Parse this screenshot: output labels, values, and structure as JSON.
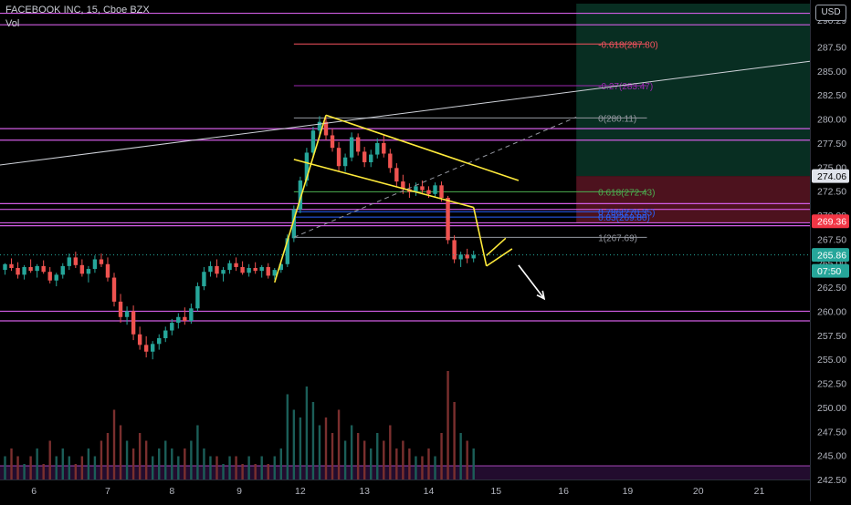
{
  "header": {
    "title": "FACEBOOK INC, 15, Cboe BZX",
    "volume_label": "Vol",
    "currency": "USD"
  },
  "colors": {
    "background": "#000000",
    "up": "#26a69a",
    "down": "#ef5350",
    "vol_up": "#1b5e58",
    "vol_down": "#7a2f2e",
    "level_line": "#d05ce3",
    "pattern": "#ffeb3b",
    "fib_line": "#9598a1",
    "profit_zone": "#0b3d2e",
    "loss_zone": "#5a1523",
    "axis_text": "#b2b5be"
  },
  "chart_data": {
    "type": "candlestick",
    "title": "FACEBOOK INC, 15, Cboe BZX",
    "ylim": [
      242.5,
      292.0
    ],
    "price_axis_ticks": [
      "290.29",
      "287.50",
      "285.00",
      "282.50",
      "280.00",
      "277.50",
      "275.00",
      "272.50",
      "270.00",
      "267.50",
      "265.00",
      "262.50",
      "260.00",
      "257.50",
      "255.00",
      "252.50",
      "250.00",
      "247.50",
      "245.00",
      "242.50"
    ],
    "x_tick_labels": [
      "6",
      "7",
      "8",
      "9",
      "12",
      "13",
      "14",
      "15",
      "16",
      "19",
      "20",
      "21"
    ],
    "price_labels": [
      {
        "text": "274.06",
        "value": 274.06,
        "color": "#e0e3eb",
        "text_color": "#000000"
      },
      {
        "text": "269.36",
        "value": 269.36,
        "color": "#f23645",
        "text_color": "#ffffff"
      },
      {
        "text": "265.86",
        "value": 265.86,
        "color": "#26a69a",
        "text_color": "#ffffff"
      },
      {
        "text": "07:50",
        "value": 264.2,
        "color": "#26a69a",
        "text_color": "#ffffff"
      }
    ],
    "fib_levels": [
      {
        "label": "-0.618(287.80)",
        "value": 287.8,
        "color": "#f7525f"
      },
      {
        "label": "-0.27(283.47)",
        "value": 283.47,
        "color": "#9c27b0"
      },
      {
        "label": "0(280.11)",
        "value": 280.11,
        "color": "#9598a1"
      },
      {
        "label": "0.618(272.43)",
        "value": 272.43,
        "color": "#4caf50"
      },
      {
        "label": "0.786(270.35)",
        "value": 270.35,
        "color": "#2962ff"
      },
      {
        "label": "0.83(269.80)",
        "value": 269.8,
        "color": "#2962ff"
      },
      {
        "label": "1(267.69)",
        "value": 267.69,
        "color": "#9598a1"
      }
    ],
    "horizontal_levels": [
      291.0,
      289.8,
      279.0,
      277.8,
      271.2,
      270.6,
      269.2,
      268.9,
      260.0,
      259.0,
      243.9
    ],
    "series": [
      {
        "name": "FB",
        "ohlc": [
          {
            "x": 0,
            "o": 264.3,
            "h": 265.0,
            "l": 263.8,
            "c": 264.9
          },
          {
            "x": 1,
            "o": 264.9,
            "h": 265.5,
            "l": 264.2,
            "c": 264.5
          },
          {
            "x": 2,
            "o": 264.5,
            "h": 265.1,
            "l": 263.4,
            "c": 263.8
          },
          {
            "x": 3,
            "o": 263.8,
            "h": 264.8,
            "l": 263.3,
            "c": 264.6
          },
          {
            "x": 4,
            "o": 264.6,
            "h": 265.4,
            "l": 264.0,
            "c": 264.2
          },
          {
            "x": 5,
            "o": 264.2,
            "h": 264.9,
            "l": 263.5,
            "c": 264.7
          },
          {
            "x": 6,
            "o": 264.7,
            "h": 265.3,
            "l": 263.9,
            "c": 264.1
          },
          {
            "x": 7,
            "o": 264.1,
            "h": 264.6,
            "l": 262.9,
            "c": 263.2
          },
          {
            "x": 8,
            "o": 263.2,
            "h": 264.0,
            "l": 262.6,
            "c": 263.8
          },
          {
            "x": 9,
            "o": 263.8,
            "h": 265.0,
            "l": 263.4,
            "c": 264.7
          },
          {
            "x": 10,
            "o": 264.7,
            "h": 266.0,
            "l": 264.3,
            "c": 265.6
          },
          {
            "x": 11,
            "o": 265.6,
            "h": 266.2,
            "l": 264.5,
            "c": 264.8
          },
          {
            "x": 12,
            "o": 264.8,
            "h": 265.4,
            "l": 263.6,
            "c": 263.9
          },
          {
            "x": 13,
            "o": 263.9,
            "h": 264.7,
            "l": 263.0,
            "c": 264.4
          },
          {
            "x": 14,
            "o": 264.4,
            "h": 265.8,
            "l": 264.0,
            "c": 265.4
          },
          {
            "x": 15,
            "o": 265.4,
            "h": 266.0,
            "l": 264.6,
            "c": 264.9
          },
          {
            "x": 16,
            "o": 264.9,
            "h": 265.6,
            "l": 263.1,
            "c": 263.5
          },
          {
            "x": 17,
            "o": 263.5,
            "h": 264.0,
            "l": 260.5,
            "c": 261.0
          },
          {
            "x": 18,
            "o": 261.0,
            "h": 261.8,
            "l": 258.8,
            "c": 259.4
          },
          {
            "x": 19,
            "o": 259.4,
            "h": 260.5,
            "l": 258.6,
            "c": 260.0
          },
          {
            "x": 20,
            "o": 260.0,
            "h": 260.6,
            "l": 257.0,
            "c": 257.6
          },
          {
            "x": 21,
            "o": 257.6,
            "h": 258.4,
            "l": 256.0,
            "c": 256.5
          },
          {
            "x": 22,
            "o": 256.5,
            "h": 257.4,
            "l": 255.2,
            "c": 255.8
          },
          {
            "x": 23,
            "o": 255.8,
            "h": 256.9,
            "l": 255.0,
            "c": 256.6
          },
          {
            "x": 24,
            "o": 256.6,
            "h": 257.6,
            "l": 256.0,
            "c": 257.2
          },
          {
            "x": 25,
            "o": 257.2,
            "h": 258.4,
            "l": 256.8,
            "c": 258.0
          },
          {
            "x": 26,
            "o": 258.0,
            "h": 259.2,
            "l": 257.5,
            "c": 258.8
          },
          {
            "x": 27,
            "o": 258.8,
            "h": 259.8,
            "l": 258.2,
            "c": 259.4
          },
          {
            "x": 28,
            "o": 259.4,
            "h": 260.4,
            "l": 258.6,
            "c": 259.0
          },
          {
            "x": 29,
            "o": 259.0,
            "h": 260.8,
            "l": 258.7,
            "c": 260.3
          },
          {
            "x": 30,
            "o": 260.3,
            "h": 263.0,
            "l": 260.0,
            "c": 262.6
          },
          {
            "x": 31,
            "o": 262.6,
            "h": 264.6,
            "l": 262.2,
            "c": 264.1
          },
          {
            "x": 32,
            "o": 264.1,
            "h": 265.2,
            "l": 263.6,
            "c": 264.7
          },
          {
            "x": 33,
            "o": 264.7,
            "h": 265.4,
            "l": 263.5,
            "c": 263.9
          },
          {
            "x": 34,
            "o": 263.9,
            "h": 264.6,
            "l": 263.1,
            "c": 264.3
          },
          {
            "x": 35,
            "o": 264.3,
            "h": 265.3,
            "l": 263.9,
            "c": 265.0
          },
          {
            "x": 36,
            "o": 265.0,
            "h": 265.6,
            "l": 264.2,
            "c": 264.6
          },
          {
            "x": 37,
            "o": 264.6,
            "h": 265.2,
            "l": 263.8,
            "c": 264.0
          },
          {
            "x": 38,
            "o": 264.0,
            "h": 264.9,
            "l": 263.6,
            "c": 264.5
          },
          {
            "x": 39,
            "o": 264.5,
            "h": 265.1,
            "l": 263.9,
            "c": 264.2
          },
          {
            "x": 40,
            "o": 264.2,
            "h": 264.8,
            "l": 263.5,
            "c": 264.6
          },
          {
            "x": 41,
            "o": 264.6,
            "h": 265.0,
            "l": 263.4,
            "c": 263.7
          },
          {
            "x": 42,
            "o": 263.7,
            "h": 264.5,
            "l": 263.3,
            "c": 264.3
          },
          {
            "x": 43,
            "o": 264.3,
            "h": 265.2,
            "l": 264.0,
            "c": 264.9
          },
          {
            "x": 44,
            "o": 264.9,
            "h": 268.0,
            "l": 264.6,
            "c": 267.6
          },
          {
            "x": 45,
            "o": 267.6,
            "h": 271.0,
            "l": 267.2,
            "c": 270.6
          },
          {
            "x": 46,
            "o": 270.6,
            "h": 274.0,
            "l": 270.2,
            "c": 273.6
          },
          {
            "x": 47,
            "o": 273.6,
            "h": 277.0,
            "l": 273.0,
            "c": 276.5
          },
          {
            "x": 48,
            "o": 276.5,
            "h": 279.2,
            "l": 276.0,
            "c": 278.8
          },
          {
            "x": 49,
            "o": 278.8,
            "h": 280.3,
            "l": 278.0,
            "c": 279.7
          },
          {
            "x": 50,
            "o": 279.7,
            "h": 280.2,
            "l": 277.8,
            "c": 278.3
          },
          {
            "x": 51,
            "o": 278.3,
            "h": 279.0,
            "l": 276.6,
            "c": 277.0
          },
          {
            "x": 52,
            "o": 277.0,
            "h": 277.6,
            "l": 274.6,
            "c": 275.1
          },
          {
            "x": 53,
            "o": 275.1,
            "h": 276.4,
            "l": 274.5,
            "c": 276.0
          },
          {
            "x": 54,
            "o": 276.0,
            "h": 278.6,
            "l": 275.6,
            "c": 278.1
          },
          {
            "x": 55,
            "o": 278.1,
            "h": 278.5,
            "l": 276.2,
            "c": 276.6
          },
          {
            "x": 56,
            "o": 276.6,
            "h": 277.1,
            "l": 275.0,
            "c": 275.5
          },
          {
            "x": 57,
            "o": 275.5,
            "h": 276.8,
            "l": 275.0,
            "c": 276.3
          },
          {
            "x": 58,
            "o": 276.3,
            "h": 278.0,
            "l": 275.9,
            "c": 277.5
          },
          {
            "x": 59,
            "o": 277.5,
            "h": 278.3,
            "l": 276.0,
            "c": 276.4
          },
          {
            "x": 60,
            "o": 276.4,
            "h": 276.9,
            "l": 274.4,
            "c": 274.9
          },
          {
            "x": 61,
            "o": 274.9,
            "h": 275.4,
            "l": 273.0,
            "c": 273.5
          },
          {
            "x": 62,
            "o": 273.5,
            "h": 274.2,
            "l": 272.2,
            "c": 272.7
          },
          {
            "x": 63,
            "o": 272.7,
            "h": 273.3,
            "l": 271.8,
            "c": 272.4
          },
          {
            "x": 64,
            "o": 272.4,
            "h": 273.4,
            "l": 272.0,
            "c": 273.0
          },
          {
            "x": 65,
            "o": 273.0,
            "h": 273.6,
            "l": 272.3,
            "c": 272.6
          },
          {
            "x": 66,
            "o": 272.6,
            "h": 273.0,
            "l": 271.8,
            "c": 272.2
          },
          {
            "x": 67,
            "o": 272.2,
            "h": 273.4,
            "l": 271.9,
            "c": 273.1
          },
          {
            "x": 68,
            "o": 273.1,
            "h": 273.5,
            "l": 271.4,
            "c": 271.8
          },
          {
            "x": 69,
            "o": 271.8,
            "h": 272.0,
            "l": 267.0,
            "c": 267.4
          },
          {
            "x": 70,
            "o": 267.4,
            "h": 267.9,
            "l": 265.0,
            "c": 265.4
          },
          {
            "x": 71,
            "o": 265.4,
            "h": 266.2,
            "l": 264.6,
            "c": 265.9
          },
          {
            "x": 72,
            "o": 265.9,
            "h": 266.5,
            "l": 265.0,
            "c": 265.5
          },
          {
            "x": 73,
            "o": 265.5,
            "h": 266.3,
            "l": 265.1,
            "c": 265.86
          }
        ],
        "volume": [
          3,
          4,
          3,
          2,
          3,
          4,
          2,
          5,
          3,
          4,
          3,
          2,
          3,
          4,
          3,
          5,
          6,
          9,
          7,
          5,
          4,
          6,
          5,
          3,
          4,
          5,
          4,
          3,
          4,
          5,
          7,
          4,
          3,
          3,
          2,
          3,
          3,
          2,
          3,
          2,
          3,
          2,
          3,
          4,
          11,
          9,
          8,
          12,
          10,
          7,
          8,
          6,
          9,
          5,
          7,
          6,
          5,
          4,
          6,
          5,
          7,
          4,
          5,
          4,
          3,
          3,
          4,
          3,
          6,
          14,
          10,
          6,
          5,
          4
        ]
      }
    ],
    "drawings": {
      "trend_line": {
        "from": {
          "x": -1,
          "y": 275.2
        },
        "to": {
          "x": 127,
          "y": 286.0
        }
      },
      "dashed_line": {
        "from": {
          "x": 45,
          "y": 267.69
        },
        "to": {
          "x": 89,
          "y": 280.2
        }
      },
      "profit_zone": {
        "x1": 89,
        "x2": 127,
        "y1": 292.0,
        "y2": 274.06
      },
      "loss_zone": {
        "x1": 89,
        "x2": 127,
        "y1": 274.06,
        "y2": 269.2
      },
      "fib_span": {
        "x1": 45,
        "x2": 100
      },
      "pattern_lines": [
        {
          "from": {
            "x": 42,
            "y": 263.0
          },
          "to": {
            "x": 50,
            "y": 280.4
          }
        },
        {
          "from": {
            "x": 50,
            "y": 280.4
          },
          "to": {
            "x": 80,
            "y": 273.6
          }
        },
        {
          "from": {
            "x": 45,
            "y": 275.8
          },
          "to": {
            "x": 73,
            "y": 270.8
          }
        },
        {
          "from": {
            "x": 73,
            "y": 270.8
          },
          "to": {
            "x": 75,
            "y": 264.7
          }
        },
        {
          "from": {
            "x": 75,
            "y": 264.7
          },
          "to": {
            "x": 79,
            "y": 266.5
          }
        },
        {
          "from": {
            "x": 75,
            "y": 265.8
          },
          "to": {
            "x": 78,
            "y": 267.6
          }
        }
      ],
      "arrow": {
        "from": {
          "x": 80,
          "y": 264.8
        },
        "to": {
          "x": 84,
          "y": 261.3
        }
      }
    }
  }
}
